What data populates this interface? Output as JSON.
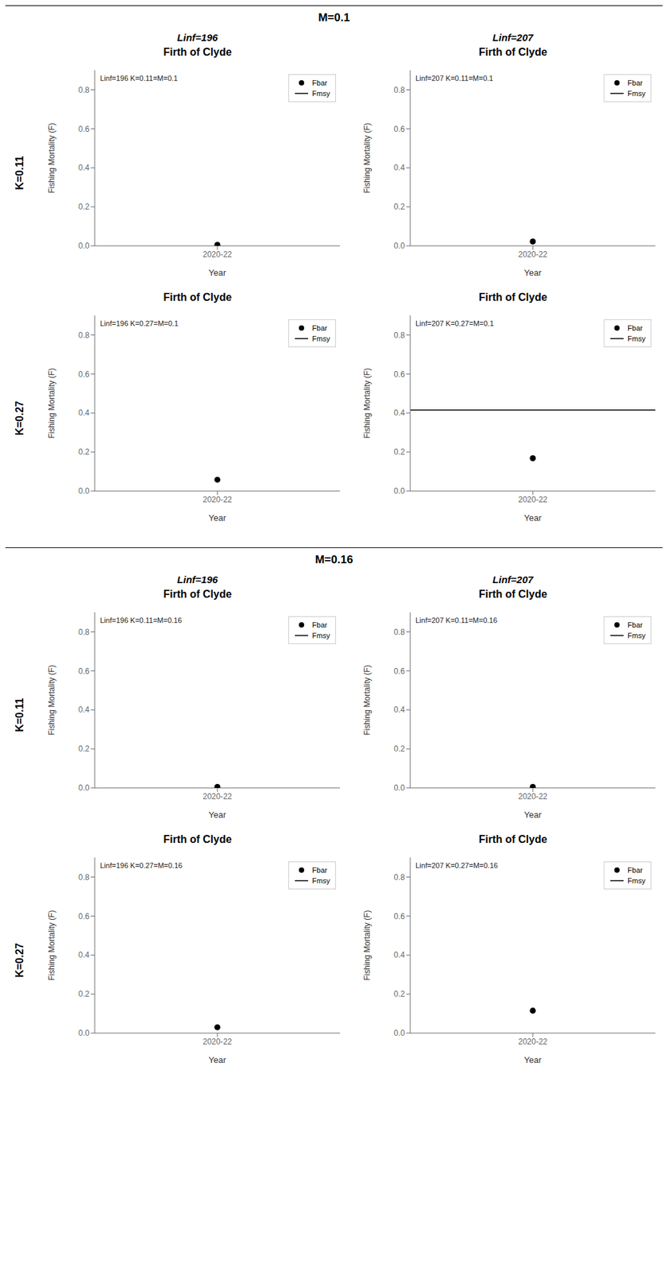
{
  "chart_data": [
    {
      "type": "scatter",
      "title": "Firth of Clyde",
      "section_title": "M=0.1",
      "column_title": "Linf=196",
      "row_title": "K=0.11",
      "annotations": [
        "Linf=196 K=0.11=M=0.1"
      ],
      "categories": [
        "2020-22"
      ],
      "series": [
        {
          "name": "Fbar",
          "type": "scatter",
          "marker": "circle",
          "color": "#000000",
          "values": [
            0.005
          ]
        },
        {
          "name": "Fmsy",
          "type": "line",
          "line_style": "solid",
          "color": "#000000",
          "values": [
            null
          ]
        }
      ],
      "x_label": "Year",
      "y_label": "Fishing Mortality (F)",
      "ylim": [
        0.0,
        0.9
      ],
      "yticks": [
        {
          "value": 0.0,
          "label": "0.0"
        },
        0.2,
        0.4,
        0.6,
        0.8
      ],
      "grid": false,
      "legend": "upper right"
    },
    {
      "type": "scatter",
      "title": "Firth of Clyde",
      "column_title": "Linf=207",
      "annotations": [
        "Linf=207 K=0.11=M=0.1"
      ],
      "categories": [
        "2020-22"
      ],
      "series": [
        {
          "name": "Fbar",
          "type": "scatter",
          "marker": "circle",
          "color": "#000000",
          "values": [
            0.022
          ]
        },
        {
          "name": "Fmsy",
          "type": "line",
          "line_style": "solid",
          "color": "#000000",
          "values": [
            null
          ]
        }
      ],
      "x_label": "Year",
      "y_label": "Fishing Mortality (F)",
      "ylim": [
        0.0,
        0.9
      ],
      "yticks": [
        {
          "value": 0.0,
          "label": "0.0"
        },
        0.2,
        0.4,
        0.6,
        0.8
      ],
      "grid": false,
      "legend": "upper right"
    },
    {
      "type": "scatter",
      "title": "Firth of Clyde",
      "row_title": "K=0.27",
      "annotations": [
        "Linf=196 K=0.27=M=0.1"
      ],
      "categories": [
        "2020-22"
      ],
      "series": [
        {
          "name": "Fbar",
          "type": "scatter",
          "marker": "circle",
          "color": "#000000",
          "values": [
            0.058
          ]
        },
        {
          "name": "Fmsy",
          "type": "line",
          "line_style": "solid",
          "color": "#000000",
          "values": [
            null
          ]
        }
      ],
      "x_label": "Year",
      "y_label": "Fishing Mortality (F)",
      "ylim": [
        0.0,
        0.9
      ],
      "yticks": [
        {
          "value": 0.0,
          "label": "0.0"
        },
        0.2,
        0.4,
        0.6,
        0.8
      ],
      "grid": false,
      "legend": "upper right"
    },
    {
      "type": "scatter",
      "title": "Firth of Clyde",
      "annotations": [
        "Linf=207 K=0.27=M=0.1"
      ],
      "categories": [
        "2020-22"
      ],
      "series": [
        {
          "name": "Fbar",
          "type": "scatter",
          "marker": "circle",
          "color": "#000000",
          "values": [
            0.168
          ]
        },
        {
          "name": "Fmsy",
          "type": "line",
          "line_style": "solid",
          "color": "#000000",
          "values": [
            0.415
          ]
        }
      ],
      "x_label": "Year",
      "y_label": "Fishing Mortality (F)",
      "ylim": [
        0.0,
        0.9
      ],
      "yticks": [
        {
          "value": 0.0,
          "label": "0.0"
        },
        0.2,
        0.4,
        0.6,
        0.8
      ],
      "grid": false,
      "legend": "upper right"
    },
    {
      "type": "scatter",
      "title": "Firth of Clyde",
      "section_title": "M=0.16",
      "column_title": "Linf=196",
      "row_title": "K=0.11",
      "annotations": [
        "Linf=196 K=0.11=M=0.16"
      ],
      "categories": [
        "2020-22"
      ],
      "series": [
        {
          "name": "Fbar",
          "type": "scatter",
          "marker": "circle",
          "color": "#000000",
          "values": [
            0.005
          ]
        },
        {
          "name": "Fmsy",
          "type": "line",
          "line_style": "solid",
          "color": "#000000",
          "values": [
            null
          ]
        }
      ],
      "x_label": "Year",
      "y_label": "Fishing Mortality (F)",
      "ylim": [
        0.0,
        0.9
      ],
      "yticks": [
        {
          "value": 0.0,
          "label": "0.0"
        },
        0.2,
        0.4,
        0.6,
        0.8
      ],
      "grid": false,
      "legend": "upper right"
    },
    {
      "type": "scatter",
      "title": "Firth of Clyde",
      "column_title": "Linf=207",
      "annotations": [
        "Linf=207 K=0.11=M=0.16"
      ],
      "categories": [
        "2020-22"
      ],
      "series": [
        {
          "name": "Fbar",
          "type": "scatter",
          "marker": "circle",
          "color": "#000000",
          "values": [
            0.005
          ]
        },
        {
          "name": "Fmsy",
          "type": "line",
          "line_style": "solid",
          "color": "#000000",
          "values": [
            null
          ]
        }
      ],
      "x_label": "Year",
      "y_label": "Fishing Mortality (F)",
      "ylim": [
        0.0,
        0.9
      ],
      "yticks": [
        {
          "value": 0.0,
          "label": "0.0"
        },
        0.2,
        0.4,
        0.6,
        0.8
      ],
      "grid": false,
      "legend": "upper right"
    },
    {
      "type": "scatter",
      "title": "Firth of Clyde",
      "row_title": "K=0.27",
      "annotations": [
        "Linf=196 K=0.27=M=0.16"
      ],
      "categories": [
        "2020-22"
      ],
      "series": [
        {
          "name": "Fbar",
          "type": "scatter",
          "marker": "circle",
          "color": "#000000",
          "values": [
            0.03
          ]
        },
        {
          "name": "Fmsy",
          "type": "line",
          "line_style": "solid",
          "color": "#000000",
          "values": [
            null
          ]
        }
      ],
      "x_label": "Year",
      "y_label": "Fishing Mortality (F)",
      "ylim": [
        0.0,
        0.9
      ],
      "yticks": [
        {
          "value": 0.0,
          "label": "0.0"
        },
        0.2,
        0.4,
        0.6,
        0.8
      ],
      "grid": false,
      "legend": "upper right"
    },
    {
      "type": "scatter",
      "title": "Firth of Clyde",
      "annotations": [
        "Linf=207 K=0.27=M=0.16"
      ],
      "categories": [
        "2020-22"
      ],
      "series": [
        {
          "name": "Fbar",
          "type": "scatter",
          "marker": "circle",
          "color": "#000000",
          "values": [
            0.115
          ]
        },
        {
          "name": "Fmsy",
          "type": "line",
          "line_style": "solid",
          "color": "#000000",
          "values": [
            null
          ]
        }
      ],
      "x_label": "Year",
      "y_label": "Fishing Mortality (F)",
      "ylim": [
        0.0,
        0.9
      ],
      "yticks": [
        {
          "value": 0.0,
          "label": "0.0"
        },
        0.2,
        0.4,
        0.6,
        0.8
      ],
      "grid": false,
      "legend": "upper right"
    }
  ]
}
